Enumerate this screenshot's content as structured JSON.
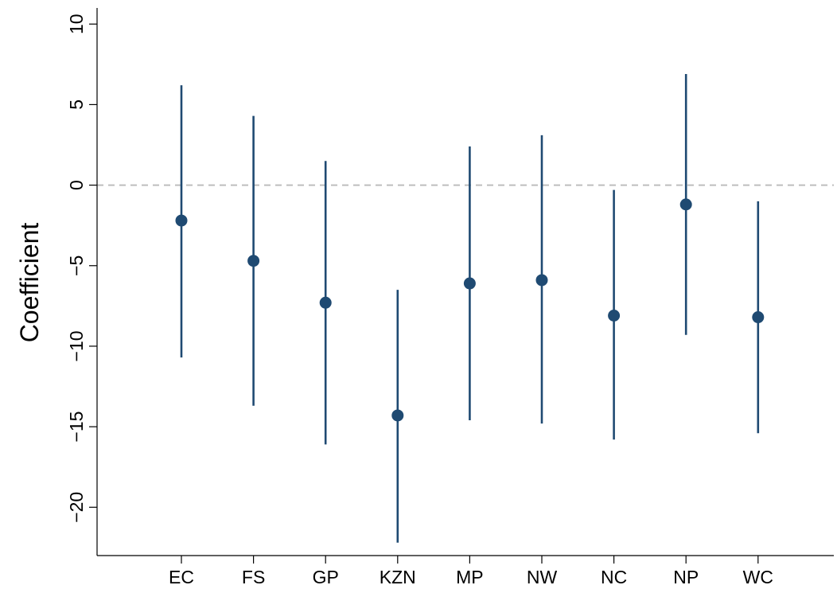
{
  "chart_data": {
    "type": "scatter",
    "title": "",
    "xlabel": "",
    "ylabel": "Coefficient",
    "ylim": [
      -23,
      11
    ],
    "yticks": [
      10,
      5,
      0,
      -5,
      -10,
      -15,
      -20
    ],
    "ytick_labels": [
      "10",
      "5",
      "0",
      "−5",
      "−10",
      "−15",
      "−20"
    ],
    "categories": [
      "EC",
      "FS",
      "GP",
      "KZN",
      "MP",
      "NW",
      "NC",
      "NP",
      "WC"
    ],
    "estimates": [
      -2.2,
      -4.7,
      -7.3,
      -14.3,
      -6.1,
      -5.9,
      -8.1,
      -1.2,
      -8.2
    ],
    "ci_lower": [
      -10.7,
      -13.7,
      -16.1,
      -22.2,
      -14.6,
      -14.8,
      -15.8,
      -9.3,
      -15.4
    ],
    "ci_upper": [
      6.2,
      4.3,
      1.5,
      -6.5,
      2.4,
      3.1,
      -0.3,
      6.9,
      -1.0
    ],
    "reference_line": 0,
    "grid": false,
    "colors": {
      "series": "#1f4a72",
      "reference": "#bdbdbd",
      "axis": "#000000"
    }
  }
}
